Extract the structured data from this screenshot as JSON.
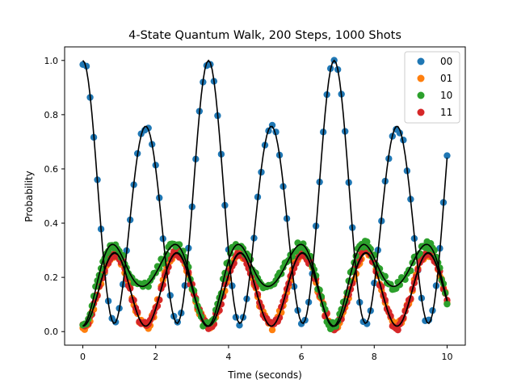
{
  "chart_data": {
    "type": "scatter",
    "title": "4-State Quantum Walk, 200 Steps, 1000 Shots",
    "xlabel": "Time (seconds)",
    "ylabel": "Probability",
    "xlim": [
      -0.5,
      10.5
    ],
    "ylim": [
      -0.05,
      1.05
    ],
    "xticks": [
      0,
      2,
      4,
      6,
      8,
      10
    ],
    "xtick_labels": [
      "0",
      "2",
      "4",
      "6",
      "8",
      "10"
    ],
    "yticks": [
      0.0,
      0.2,
      0.4,
      0.6,
      0.8,
      1.0
    ],
    "ytick_labels": [
      "0.0",
      "0.2",
      "0.4",
      "0.6",
      "0.8",
      "1.0"
    ],
    "grid": false,
    "legend_position": "top-right",
    "time_range": [
      0,
      10
    ],
    "shots": 1000,
    "series": [
      {
        "name": "00",
        "color": "#1f77b4",
        "peak_times": [
          0,
          1.72,
          3.45,
          5.17,
          6.9,
          8.62
        ],
        "min_value": 0.03
      },
      {
        "name": "01",
        "color": "#ff7f0e"
      },
      {
        "name": "10",
        "color": "#2ca02c"
      },
      {
        "name": "11",
        "color": "#d62728"
      }
    ],
    "model_line_color": "#000000"
  }
}
